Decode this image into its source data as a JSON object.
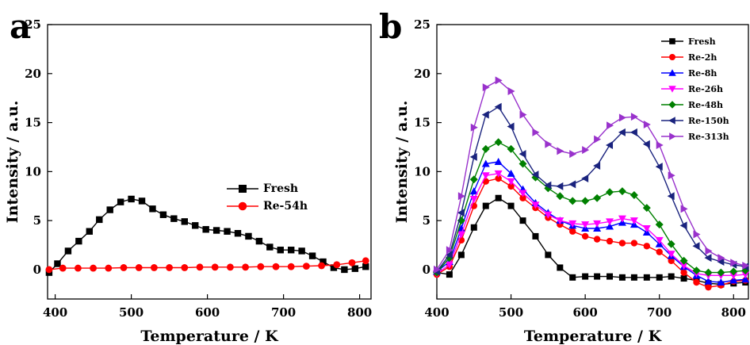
{
  "chart_data": [
    {
      "panel": "a",
      "type": "line",
      "xlabel": "Temperature / K",
      "ylabel": "Intensity / a.u.",
      "xlim": [
        390,
        815
      ],
      "ylim": [
        -3,
        25
      ],
      "xticks": [
        400,
        500,
        600,
        700,
        800
      ],
      "yticks": [
        0,
        5,
        10,
        15,
        20,
        25
      ],
      "legend_position": "center-right",
      "series": [
        {
          "name": "Fresh",
          "color": "#000000",
          "marker": "square",
          "x": [
            392,
            403,
            417,
            431,
            445,
            458,
            472,
            486,
            500,
            514,
            528,
            542,
            556,
            570,
            584,
            598,
            612,
            626,
            640,
            654,
            668,
            682,
            696,
            710,
            724,
            738,
            752,
            766,
            780,
            794,
            808
          ],
          "y": [
            -0.3,
            0.6,
            1.9,
            2.9,
            3.9,
            5.1,
            6.1,
            6.9,
            7.2,
            7.0,
            6.2,
            5.6,
            5.2,
            4.9,
            4.5,
            4.1,
            4.0,
            3.9,
            3.7,
            3.4,
            2.9,
            2.3,
            2.0,
            2.0,
            1.9,
            1.4,
            0.8,
            0.2,
            0.0,
            0.1,
            0.3
          ]
        },
        {
          "name": "Re-54h",
          "color": "#ff0000",
          "marker": "circle",
          "x": [
            392,
            410,
            430,
            450,
            470,
            490,
            510,
            530,
            550,
            570,
            590,
            610,
            630,
            650,
            670,
            690,
            710,
            730,
            750,
            770,
            790,
            808
          ],
          "y": [
            0.0,
            0.15,
            0.15,
            0.15,
            0.15,
            0.2,
            0.2,
            0.2,
            0.2,
            0.2,
            0.25,
            0.25,
            0.25,
            0.25,
            0.3,
            0.3,
            0.3,
            0.35,
            0.4,
            0.5,
            0.7,
            0.9
          ]
        }
      ]
    },
    {
      "panel": "b",
      "type": "line",
      "xlabel": "Temperature / K",
      "ylabel": "Intensity / a.u.",
      "xlim": [
        400,
        820
      ],
      "ylim": [
        -3,
        25
      ],
      "xticks": [
        400,
        500,
        600,
        700,
        800
      ],
      "yticks": [
        0,
        5,
        10,
        15,
        20,
        25
      ],
      "legend_position": "top-right",
      "series": [
        {
          "name": "Fresh",
          "color": "#000000",
          "marker": "square",
          "x": [
            400,
            417,
            433,
            450,
            466,
            483,
            500,
            516,
            533,
            550,
            566,
            583,
            600,
            616,
            633,
            650,
            666,
            683,
            700,
            716,
            733,
            750,
            766,
            783,
            800,
            816
          ],
          "y": [
            -0.3,
            -0.5,
            1.5,
            4.3,
            6.5,
            7.3,
            6.5,
            5.0,
            3.4,
            1.5,
            0.2,
            -0.8,
            -0.7,
            -0.7,
            -0.7,
            -0.8,
            -0.8,
            -0.8,
            -0.8,
            -0.7,
            -0.9,
            -1.1,
            -1.4,
            -1.5,
            -1.4,
            -1.3
          ]
        },
        {
          "name": "Re-2h",
          "color": "#ff0000",
          "marker": "circle",
          "x": [
            400,
            417,
            433,
            450,
            466,
            483,
            500,
            516,
            533,
            550,
            566,
            583,
            600,
            616,
            633,
            650,
            666,
            683,
            700,
            716,
            733,
            750,
            766,
            783,
            800,
            816
          ],
          "y": [
            -0.5,
            0.3,
            3.0,
            6.5,
            9.0,
            9.3,
            8.5,
            7.3,
            6.3,
            5.3,
            4.6,
            3.9,
            3.4,
            3.1,
            2.9,
            2.7,
            2.7,
            2.4,
            1.8,
            0.9,
            -0.3,
            -1.3,
            -1.8,
            -1.6,
            -1.2,
            -1.1
          ]
        },
        {
          "name": "Re-8h",
          "color": "#0000ff",
          "marker": "triangle-up",
          "x": [
            400,
            417,
            433,
            450,
            466,
            483,
            500,
            516,
            533,
            550,
            566,
            583,
            600,
            616,
            633,
            650,
            666,
            683,
            700,
            716,
            733,
            750,
            766,
            783,
            800,
            816
          ],
          "y": [
            -0.2,
            0.8,
            4.2,
            8.0,
            10.8,
            11.0,
            9.8,
            8.2,
            6.8,
            5.8,
            5.0,
            4.5,
            4.2,
            4.2,
            4.4,
            4.8,
            4.6,
            3.8,
            2.6,
            1.4,
            0.3,
            -0.6,
            -1.2,
            -1.3,
            -1.1,
            -1.0
          ]
        },
        {
          "name": "Re-26h",
          "color": "#ff00ff",
          "marker": "triangle-down",
          "x": [
            400,
            417,
            433,
            450,
            466,
            483,
            500,
            516,
            533,
            550,
            566,
            583,
            600,
            616,
            633,
            650,
            666,
            683,
            700,
            716,
            733,
            750,
            766,
            783,
            800,
            816
          ],
          "y": [
            -0.4,
            0.5,
            3.6,
            7.2,
            9.6,
            9.8,
            9.0,
            7.8,
            6.6,
            5.6,
            5.0,
            4.7,
            4.6,
            4.7,
            4.9,
            5.2,
            5.0,
            4.2,
            3.0,
            1.6,
            0.4,
            -0.4,
            -0.6,
            -0.6,
            -0.6,
            -0.5
          ]
        },
        {
          "name": "Re-48h",
          "color": "#008000",
          "marker": "diamond",
          "x": [
            400,
            417,
            433,
            450,
            466,
            483,
            500,
            516,
            533,
            550,
            566,
            583,
            600,
            616,
            633,
            650,
            666,
            683,
            700,
            716,
            733,
            750,
            766,
            783,
            800,
            816
          ],
          "y": [
            -0.3,
            1.2,
            5.0,
            9.2,
            12.3,
            13.0,
            12.3,
            10.8,
            9.4,
            8.3,
            7.5,
            7.0,
            7.0,
            7.3,
            7.9,
            8.0,
            7.6,
            6.3,
            4.6,
            2.6,
            0.9,
            -0.1,
            -0.3,
            -0.3,
            -0.2,
            -0.1
          ]
        },
        {
          "name": "Re-150h",
          "color": "#1a237e",
          "marker": "triangle-left",
          "x": [
            400,
            417,
            433,
            450,
            466,
            483,
            500,
            516,
            533,
            550,
            566,
            583,
            600,
            616,
            633,
            650,
            666,
            683,
            700,
            716,
            733,
            750,
            766,
            783,
            800,
            816
          ],
          "y": [
            -0.2,
            1.5,
            5.8,
            11.5,
            15.8,
            16.6,
            14.6,
            11.8,
            9.7,
            8.6,
            8.5,
            8.7,
            9.3,
            10.6,
            12.7,
            14.0,
            14.0,
            12.8,
            10.5,
            7.5,
            4.5,
            2.4,
            1.2,
            0.8,
            0.5,
            0.3
          ]
        },
        {
          "name": "Re-313h",
          "color": "#9932cc",
          "marker": "triangle-right",
          "x": [
            400,
            417,
            433,
            450,
            466,
            483,
            500,
            516,
            533,
            550,
            566,
            583,
            600,
            616,
            633,
            650,
            666,
            683,
            700,
            716,
            733,
            750,
            766,
            783,
            800,
            816
          ],
          "y": [
            0.0,
            2.0,
            7.5,
            14.5,
            18.6,
            19.3,
            18.2,
            15.8,
            14.0,
            12.8,
            12.1,
            11.8,
            12.2,
            13.3,
            14.7,
            15.5,
            15.6,
            14.8,
            12.7,
            9.6,
            6.2,
            3.6,
            1.9,
            1.2,
            0.7,
            0.4
          ]
        }
      ]
    }
  ]
}
